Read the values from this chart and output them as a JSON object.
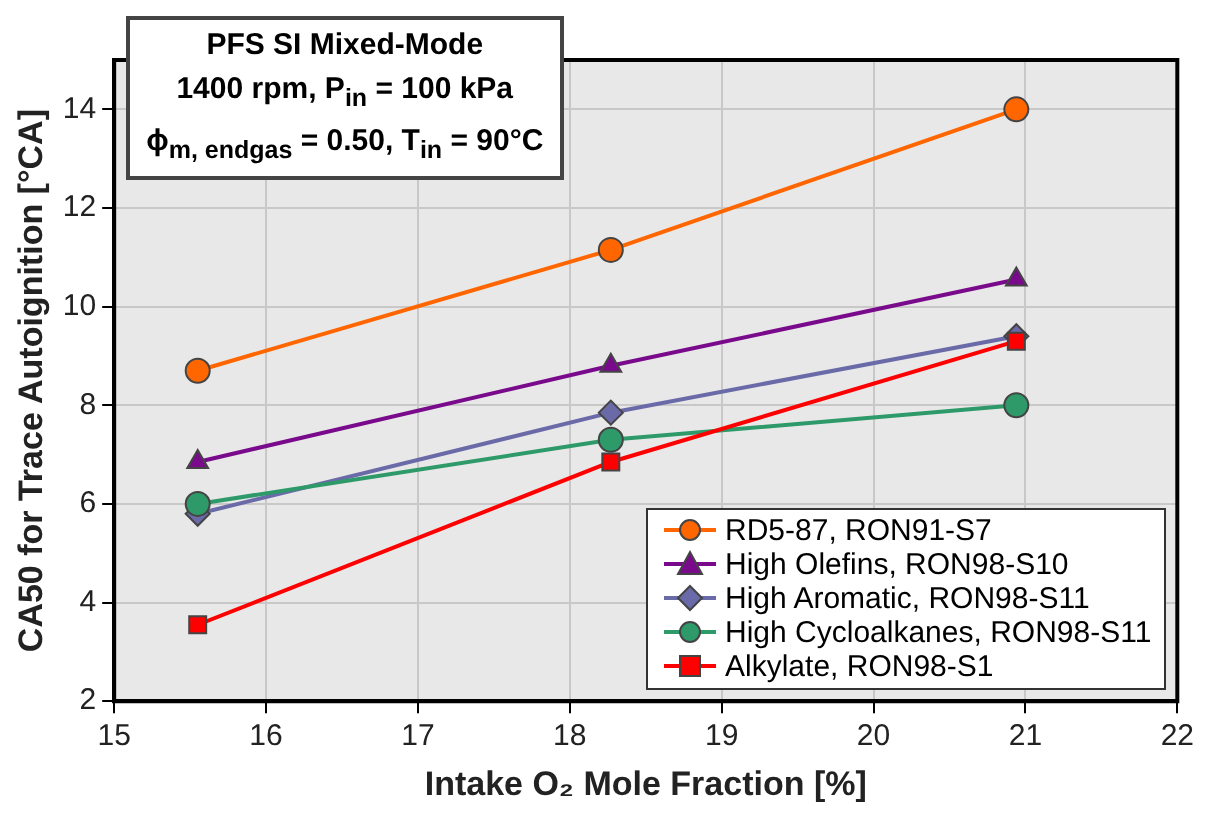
{
  "chart_data": {
    "type": "line",
    "xlabel": "Intake O₂ Mole Fraction [%]",
    "ylabel": "CA50 for Trace Autoignition [°CA]",
    "annotations": [
      "PFS SI Mixed-Mode",
      "1400 rpm, P$_{in}$ = 100 kPa",
      "ϕ$_{m, endgas}$ = 0.50, T$_{in}$ = 90°C"
    ],
    "x": [
      15.55,
      18.27,
      20.94
    ],
    "series": [
      {
        "name": "RD5-87, RON91-S7",
        "color": "#ff6600",
        "marker": "circle",
        "values": [
          8.7,
          11.15,
          14.0
        ]
      },
      {
        "name": "High Olefins, RON98-S10",
        "color": "#7a0a8c",
        "marker": "triangle",
        "values": [
          6.85,
          8.8,
          10.55
        ]
      },
      {
        "name": "High Aromatic, RON98-S11",
        "color": "#6a6aa8",
        "marker": "diamond",
        "values": [
          5.8,
          7.85,
          9.4
        ]
      },
      {
        "name": "High Cycloalkanes, RON98-S11",
        "color": "#2e9a6a",
        "marker": "circle",
        "values": [
          6.0,
          7.3,
          8.0
        ]
      },
      {
        "name": "Alkylate, RON98-S1",
        "color": "#ff0000",
        "marker": "square",
        "values": [
          3.55,
          6.85,
          9.3
        ]
      }
    ],
    "xlim": [
      15,
      22
    ],
    "xticks": [
      15,
      16,
      17,
      18,
      19,
      20,
      21,
      22
    ],
    "ylim": [
      2,
      15
    ],
    "yticks": [
      2,
      4,
      6,
      8,
      10,
      12,
      14
    ],
    "grid": true,
    "legend": "bottom right",
    "line_style": "solid"
  }
}
